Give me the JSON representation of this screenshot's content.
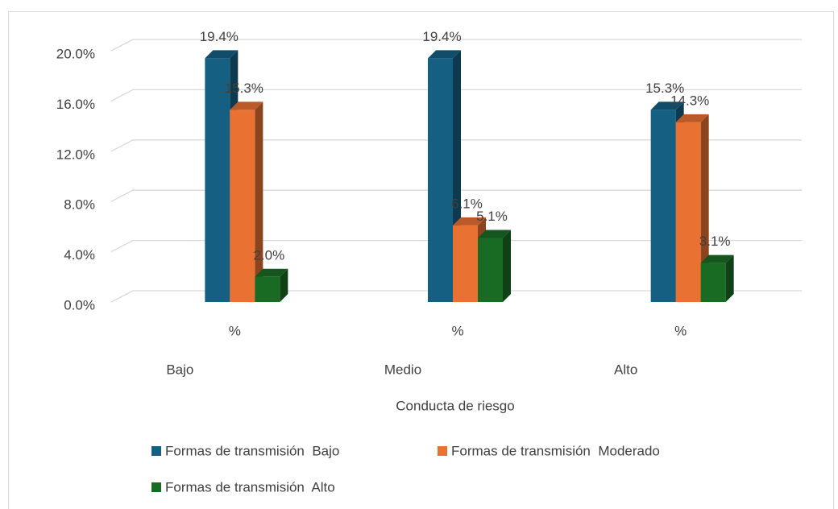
{
  "chart_data": {
    "type": "bar3d",
    "x_axis_label": "Conducta de riesgo",
    "categories": [
      "%",
      "%",
      "%"
    ],
    "groups": [
      "Bajo",
      "Medio",
      "Alto"
    ],
    "series": [
      {
        "name": "Formas de transmisión  Bajo",
        "color": "#156082",
        "values": [
          19.4,
          19.4,
          15.3
        ],
        "value_labels": [
          "19.4%",
          "19.4%",
          "15.3%"
        ]
      },
      {
        "name": "Formas de transmisión  Moderado",
        "color": "#e97132",
        "values": [
          15.3,
          6.1,
          14.3
        ],
        "value_labels": [
          "15.3%",
          "6.1%",
          "14.3%"
        ]
      },
      {
        "name": "Formas de transmisión  Alto",
        "color": "#196b24",
        "values": [
          2.0,
          5.1,
          3.1
        ],
        "value_labels": [
          "2.0%",
          "5.1%",
          "3.1%"
        ]
      }
    ],
    "ylim": [
      0,
      20
    ],
    "yticks": [
      {
        "value": 0,
        "label": "0.0%"
      },
      {
        "value": 4,
        "label": "4.0%"
      },
      {
        "value": 8,
        "label": "8.0%"
      },
      {
        "value": 12,
        "label": "12.0%"
      },
      {
        "value": 16,
        "label": "16.0%"
      },
      {
        "value": 20,
        "label": "20.0%"
      }
    ],
    "grid": true,
    "legend": "bottom"
  }
}
